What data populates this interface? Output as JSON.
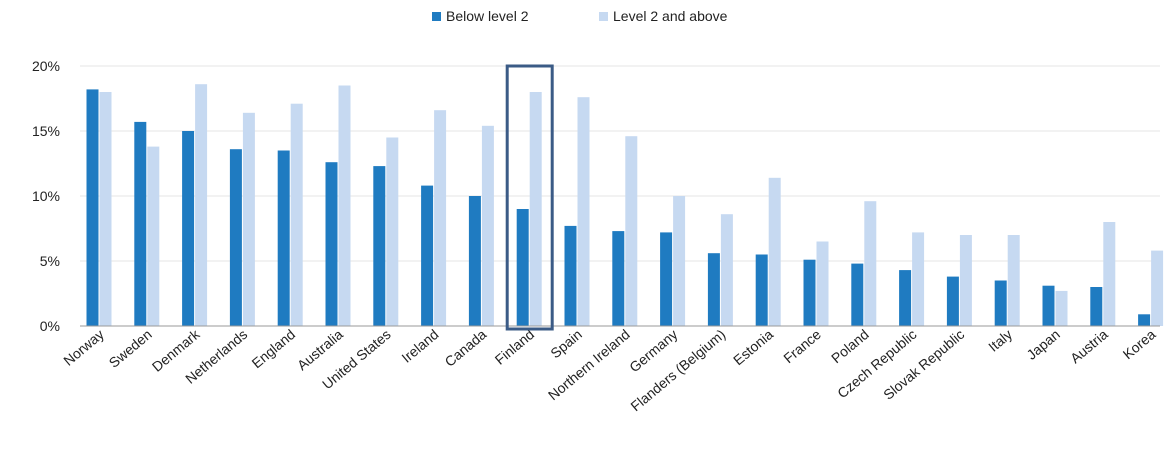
{
  "chart_data": {
    "type": "bar",
    "categories": [
      "Norway",
      "Sweden",
      "Denmark",
      "Netherlands",
      "England",
      "Australia",
      "United States",
      "Ireland",
      "Canada",
      "Finland",
      "Spain",
      "Northern Ireland",
      "Germany",
      "Flanders (Belgium)",
      "Estonia",
      "France",
      "Poland",
      "Czech Republic",
      "Slovak Republic",
      "Italy",
      "Japan",
      "Austria",
      "Korea"
    ],
    "series": [
      {
        "name": "Below level 2",
        "color": "#1f7bc1",
        "values": [
          18.2,
          15.7,
          15.0,
          13.6,
          13.5,
          12.6,
          12.3,
          10.8,
          10.0,
          9.0,
          7.7,
          7.3,
          7.2,
          5.6,
          5.5,
          5.1,
          4.8,
          4.3,
          3.8,
          3.5,
          3.1,
          3.0,
          0.9
        ]
      },
      {
        "name": "Level 2 and above",
        "color": "#c6d9f1",
        "values": [
          18.0,
          13.8,
          18.6,
          16.4,
          17.1,
          18.5,
          14.5,
          16.6,
          15.4,
          18.0,
          17.6,
          14.6,
          10.0,
          8.6,
          11.4,
          6.5,
          9.6,
          7.2,
          7.0,
          7.0,
          2.7,
          8.0,
          5.8
        ]
      }
    ],
    "yticks": [
      "0%",
      "5%",
      "10%",
      "15%",
      "20%"
    ],
    "ylim": [
      0,
      20
    ],
    "grid": true,
    "legend_position": "top-center",
    "highlight_category": "Finland",
    "highlight_color": "#3b5b86"
  }
}
